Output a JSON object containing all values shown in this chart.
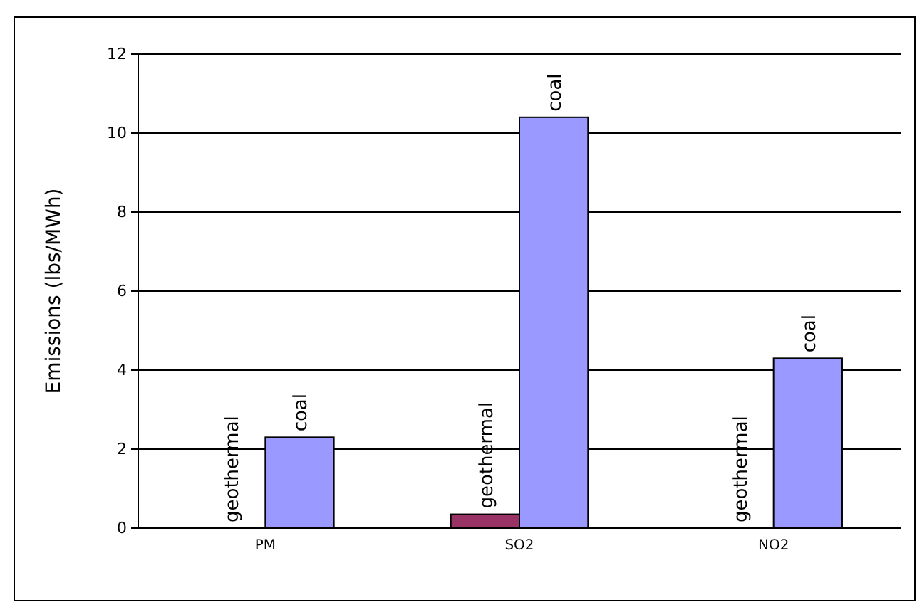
{
  "chart_data": {
    "type": "bar",
    "ylabel": "Emissions (lbs/MWh)",
    "categories": [
      "PM",
      "SO2",
      "NO2"
    ],
    "series": [
      {
        "name": "geothermal",
        "color": "#993366",
        "values": [
          0,
          0.35,
          0
        ]
      },
      {
        "name": "coal",
        "color": "#9999ff",
        "values": [
          2.3,
          10.4,
          4.3
        ]
      }
    ],
    "ylim": [
      0,
      12
    ],
    "yticks": [
      0,
      2,
      4,
      6,
      8,
      10,
      12
    ],
    "grid": "y"
  }
}
